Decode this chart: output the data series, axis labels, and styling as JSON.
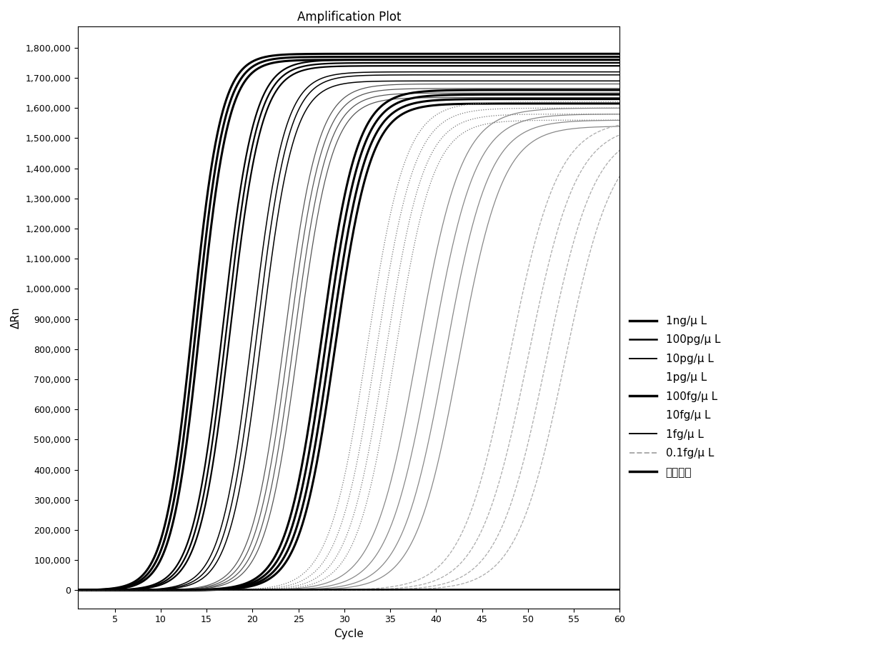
{
  "title": "Amplification Plot",
  "xlabel": "Cycle",
  "ylabel": "ΔRn",
  "xlim": [
    1,
    60
  ],
  "ylim": [
    -60000,
    1870000
  ],
  "xticks": [
    5,
    10,
    15,
    20,
    25,
    30,
    35,
    40,
    45,
    50,
    55,
    60
  ],
  "yticks": [
    0,
    100000,
    200000,
    300000,
    400000,
    500000,
    600000,
    700000,
    800000,
    900000,
    1000000,
    1100000,
    1200000,
    1300000,
    1400000,
    1500000,
    1600000,
    1700000,
    1800000
  ],
  "series": [
    {
      "label": "1ng/μ L",
      "midpoints": [
        13.5,
        13.9,
        14.3
      ],
      "plateau": [
        1780000,
        1770000,
        1760000
      ],
      "color": "#000000",
      "lw": 2.2,
      "ls": "solid",
      "k": 0.65
    },
    {
      "label": "100pg/μ L",
      "midpoints": [
        16.8,
        17.2,
        17.6
      ],
      "plateau": [
        1760000,
        1750000,
        1740000
      ],
      "color": "#000000",
      "lw": 1.6,
      "ls": "solid",
      "k": 0.6
    },
    {
      "label": "10pg/μ L",
      "midpoints": [
        20.0,
        20.5,
        21.0
      ],
      "plateau": [
        1720000,
        1710000,
        1690000
      ],
      "color": "#000000",
      "lw": 1.1,
      "ls": "solid",
      "k": 0.58
    },
    {
      "label": "1pg/μ L",
      "midpoints": [
        23.5,
        24.0,
        24.5,
        25.0
      ],
      "plateau": [
        1680000,
        1665000,
        1650000,
        1635000
      ],
      "color": "#555555",
      "lw": 0.9,
      "ls": "solid",
      "k": 0.55
    },
    {
      "label": "100fg/μ L",
      "midpoints": [
        27.5,
        28.0,
        28.5,
        29.0
      ],
      "plateau": [
        1660000,
        1645000,
        1630000,
        1615000
      ],
      "color": "#000000",
      "lw": 2.2,
      "ls": "solid",
      "k": 0.52
    },
    {
      "label": "10fg/μ L",
      "midpoints": [
        32.5,
        33.5,
        34.5,
        35.5
      ],
      "plateau": [
        1620000,
        1600000,
        1580000,
        1560000
      ],
      "color": "#777777",
      "lw": 0.9,
      "ls": "dotted",
      "k": 0.48
    },
    {
      "label": "1fg/μ L",
      "midpoints": [
        38.0,
        39.5,
        41.0,
        42.5
      ],
      "plateau": [
        1600000,
        1580000,
        1560000,
        1540000
      ],
      "color": "#888888",
      "lw": 0.9,
      "ls": "solid",
      "k": 0.42
    },
    {
      "label": "0.1fg/μ L",
      "midpoints": [
        48.0,
        50.0,
        52.0,
        54.0
      ],
      "plateau": [
        1560000,
        1545000,
        1530000,
        1515000
      ],
      "color": "#aaaaaa",
      "lw": 0.9,
      "ls": "dashed",
      "k": 0.38
    },
    {
      "label": "阴性对照",
      "midpoints": [],
      "plateau": [
        3000
      ],
      "color": "#000000",
      "lw": 1.8,
      "ls": "solid",
      "k": 0.5,
      "flat": true
    }
  ],
  "legend_labels": [
    "1ng/μ L",
    "100pg/μ L",
    "10pg/μ L",
    "1pg/μ L",
    "100fg/μ L",
    "10fg/μ L",
    "1fg/μ L",
    "0.1fg/μ L",
    "阴性对照"
  ],
  "legend_lw": [
    2.5,
    1.8,
    1.4,
    0.0,
    2.5,
    0.0,
    1.4,
    1.4,
    2.5
  ],
  "legend_ls": [
    "solid",
    "solid",
    "solid",
    "solid",
    "solid",
    "solid",
    "solid",
    "dashed",
    "solid"
  ],
  "legend_color": [
    "#000000",
    "#000000",
    "#000000",
    "#000000",
    "#000000",
    "#000000",
    "#000000",
    "#aaaaaa",
    "#000000"
  ]
}
